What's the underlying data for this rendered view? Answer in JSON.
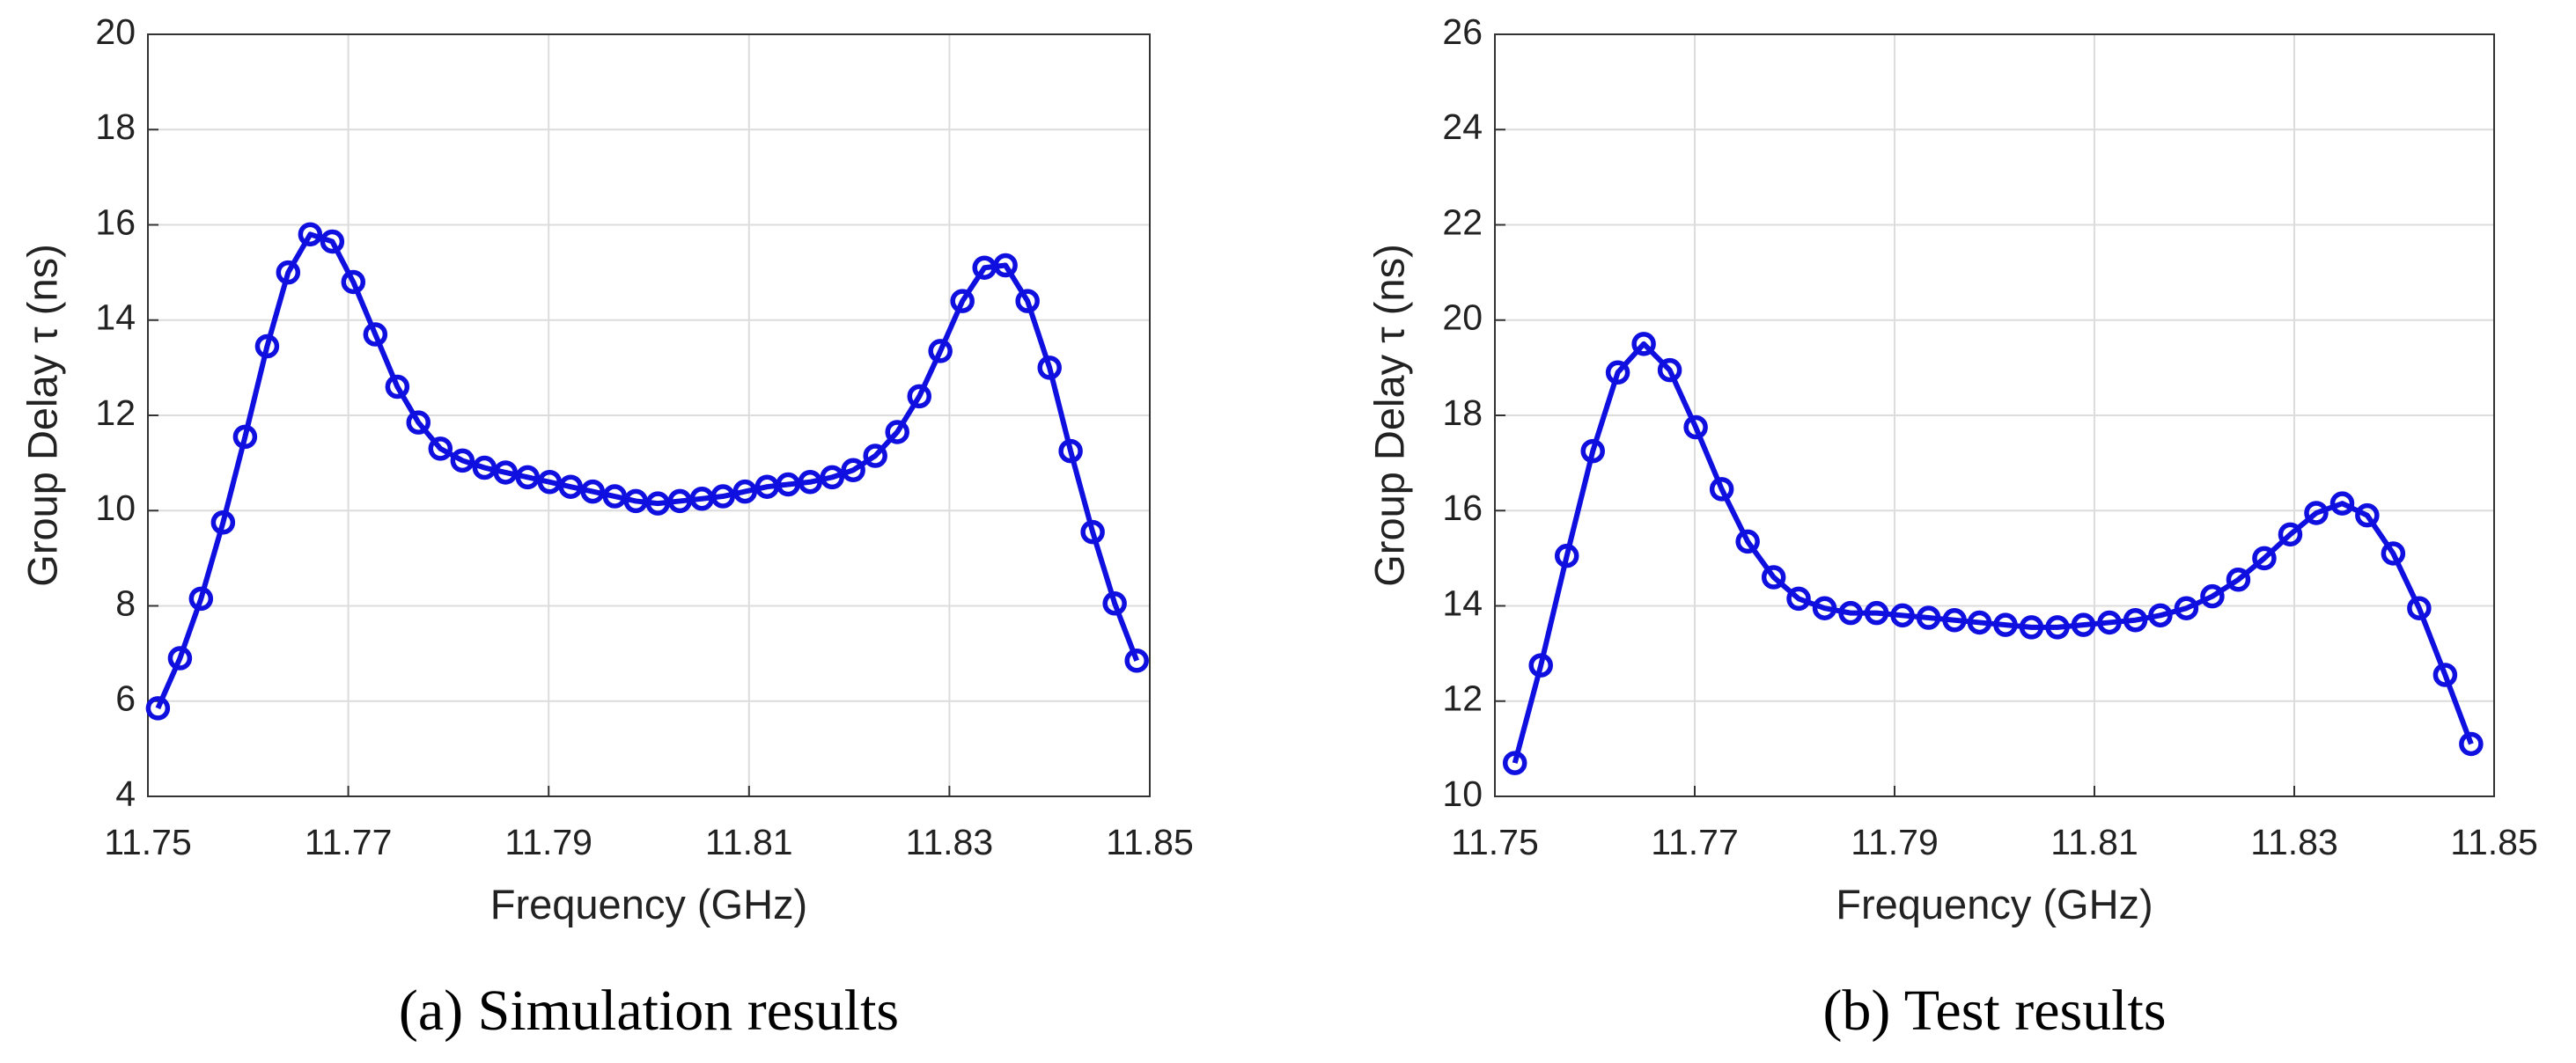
{
  "chart_data": [
    {
      "type": "line",
      "xlabel": "Frequency (GHz)",
      "ylabel": "Group Delay τ (ns)",
      "caption": "(a) Simulation results",
      "xlim": [
        11.75,
        11.85
      ],
      "xticks": [
        11.75,
        11.77,
        11.79,
        11.81,
        11.83,
        11.85
      ],
      "ylim": [
        4,
        20
      ],
      "yticks": [
        4,
        6,
        8,
        10,
        12,
        14,
        16,
        18,
        20
      ],
      "grid": true,
      "x": [
        11.751,
        11.7532,
        11.7553,
        11.7575,
        11.7597,
        11.7619,
        11.764,
        11.7662,
        11.7684,
        11.7705,
        11.7727,
        11.7749,
        11.777,
        11.7792,
        11.7814,
        11.7836,
        11.7857,
        11.7879,
        11.7901,
        11.7922,
        11.7944,
        11.7966,
        11.7987,
        11.8009,
        11.8031,
        11.8053,
        11.8074,
        11.8096,
        11.8118,
        11.8139,
        11.8161,
        11.8183,
        11.8204,
        11.8226,
        11.8248,
        11.827,
        11.8291,
        11.8313,
        11.8335,
        11.8356,
        11.8378,
        11.84,
        11.8421,
        11.8443,
        11.8465,
        11.8487
      ],
      "series": [
        {
          "color": "#0f0fe0",
          "values": [
            5.85,
            6.9,
            8.15,
            9.75,
            11.55,
            13.45,
            15.0,
            15.8,
            15.65,
            14.8,
            13.7,
            12.6,
            11.85,
            11.3,
            11.05,
            10.9,
            10.8,
            10.7,
            10.6,
            10.5,
            10.4,
            10.3,
            10.2,
            10.15,
            10.2,
            10.25,
            10.3,
            10.4,
            10.5,
            10.55,
            10.6,
            10.7,
            10.85,
            11.15,
            11.65,
            12.4,
            13.35,
            14.4,
            15.1,
            15.15,
            14.4,
            13.0,
            11.25,
            9.55,
            8.05,
            6.85
          ]
        }
      ]
    },
    {
      "type": "line",
      "xlabel": "Frequency (GHz)",
      "ylabel": "Group Delay τ (ns)",
      "caption": "(b) Test results",
      "xlim": [
        11.75,
        11.85
      ],
      "xticks": [
        11.75,
        11.77,
        11.79,
        11.81,
        11.83,
        11.85
      ],
      "ylim": [
        10,
        26
      ],
      "yticks": [
        10,
        12,
        14,
        16,
        18,
        20,
        22,
        24,
        26
      ],
      "grid": true,
      "x": [
        11.752,
        11.7546,
        11.7572,
        11.7598,
        11.7623,
        11.7649,
        11.7675,
        11.7701,
        11.7727,
        11.7753,
        11.7779,
        11.7804,
        11.783,
        11.7856,
        11.7882,
        11.7908,
        11.7934,
        11.796,
        11.7985,
        11.8011,
        11.8037,
        11.8063,
        11.8089,
        11.8115,
        11.8141,
        11.8166,
        11.8192,
        11.8218,
        11.8244,
        11.827,
        11.8296,
        11.8322,
        11.8348,
        11.8373,
        11.8399,
        11.8425,
        11.8451,
        11.8477
      ],
      "series": [
        {
          "color": "#0f0fe0",
          "values": [
            10.7,
            12.75,
            15.05,
            17.25,
            18.9,
            19.5,
            18.95,
            17.75,
            16.45,
            15.35,
            14.6,
            14.15,
            13.95,
            13.85,
            13.85,
            13.8,
            13.75,
            13.7,
            13.65,
            13.6,
            13.55,
            13.55,
            13.6,
            13.65,
            13.7,
            13.8,
            13.95,
            14.2,
            14.55,
            15.0,
            15.5,
            15.95,
            16.15,
            15.9,
            15.1,
            13.95,
            12.55,
            11.1
          ]
        }
      ]
    }
  ]
}
